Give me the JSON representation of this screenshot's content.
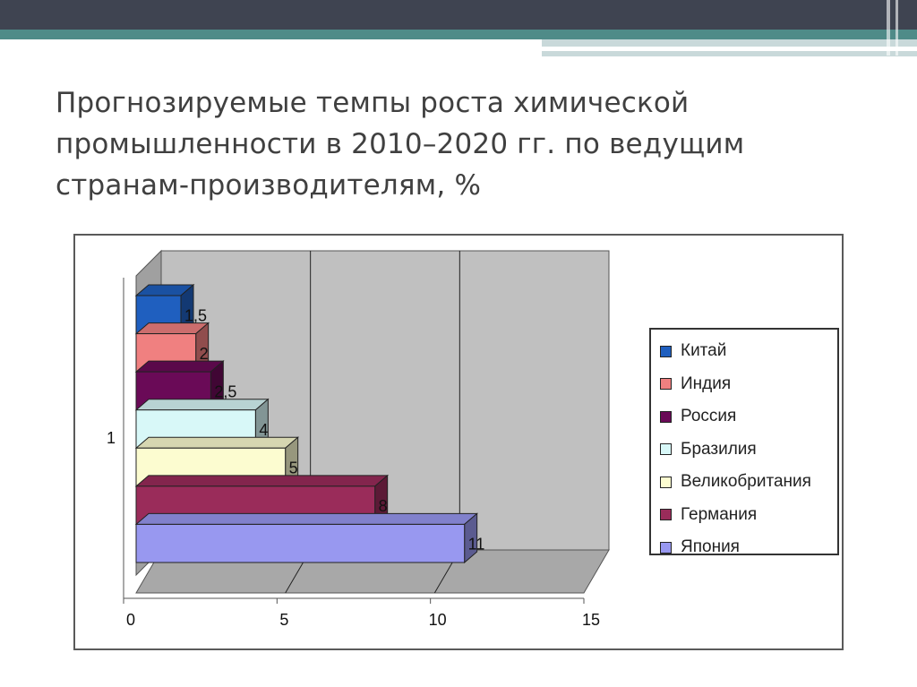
{
  "slide": {
    "title_lines": [
      "Прогнозируемые темпы роста химической",
      "промышленности в 2010–2020 гг. по ведущим",
      "странам-производителям, %"
    ]
  },
  "colors": {
    "topbar_dark": "#3f4451",
    "topbar_teal": "#4f8b88",
    "topbar_light": "#c9d9da",
    "plot_wall": "#c0c0c0",
    "plot_floor": "#a8a8a8"
  },
  "chart_data": {
    "type": "bar",
    "orientation": "horizontal",
    "three_d": true,
    "categories": [
      "1"
    ],
    "series": [
      {
        "name": "Китай",
        "values": [
          1.5
        ],
        "color": "#1f5fbf",
        "label": "1,5"
      },
      {
        "name": "Индия",
        "values": [
          2
        ],
        "color": "#f08080",
        "label": "2"
      },
      {
        "name": "Россия",
        "values": [
          2.5
        ],
        "color": "#6a0a57",
        "label": "2,5"
      },
      {
        "name": "Бразилия",
        "values": [
          4
        ],
        "color": "#d8f8f8",
        "label": "4"
      },
      {
        "name": "Великобритания",
        "values": [
          5
        ],
        "color": "#fcfcd0",
        "label": "5"
      },
      {
        "name": "Германия",
        "values": [
          8
        ],
        "color": "#9a2c5a",
        "label": "8"
      },
      {
        "name": "Япония",
        "values": [
          11
        ],
        "color": "#9898f0",
        "label": "11"
      }
    ],
    "xlim": [
      0,
      15
    ],
    "x_ticks": [
      "0",
      "5",
      "10",
      "15"
    ],
    "grid": true,
    "legend_position": "right"
  }
}
